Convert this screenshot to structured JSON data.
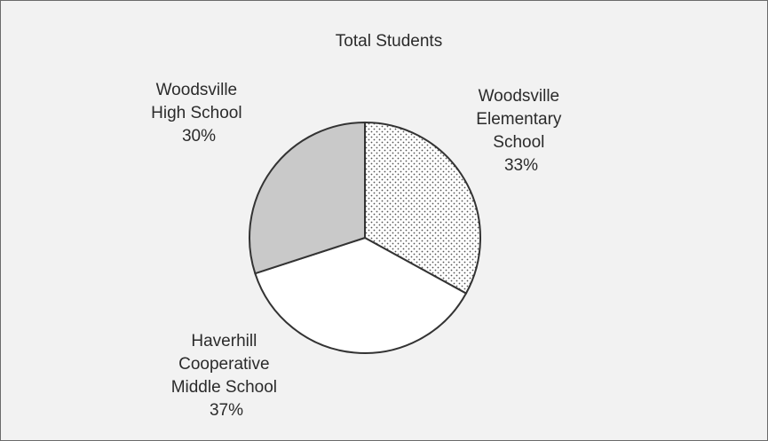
{
  "chart_data": {
    "type": "pie",
    "title": "Total Students",
    "slices": [
      {
        "label": "Woodsville Elementary School",
        "value": 33,
        "display": "33%",
        "fill": "dots"
      },
      {
        "label": "Haverhill Cooperative Middle School",
        "value": 37,
        "display": "37%",
        "fill": "white"
      },
      {
        "label": "Woodsville High School",
        "value": 30,
        "display": "30%",
        "fill": "gray"
      }
    ],
    "colors": {
      "background": "#f2f2f2",
      "gray_slice": "#c9c9c9",
      "white_slice": "#ffffff",
      "outline": "#333333"
    }
  },
  "labels": {
    "elementary": [
      "Woodsville",
      "Elementary",
      "School",
      "33%"
    ],
    "middle": [
      "Haverhill",
      "Cooperative",
      "Middle School",
      "37%"
    ],
    "high": [
      "Woodsville",
      "High School",
      "30%"
    ]
  }
}
